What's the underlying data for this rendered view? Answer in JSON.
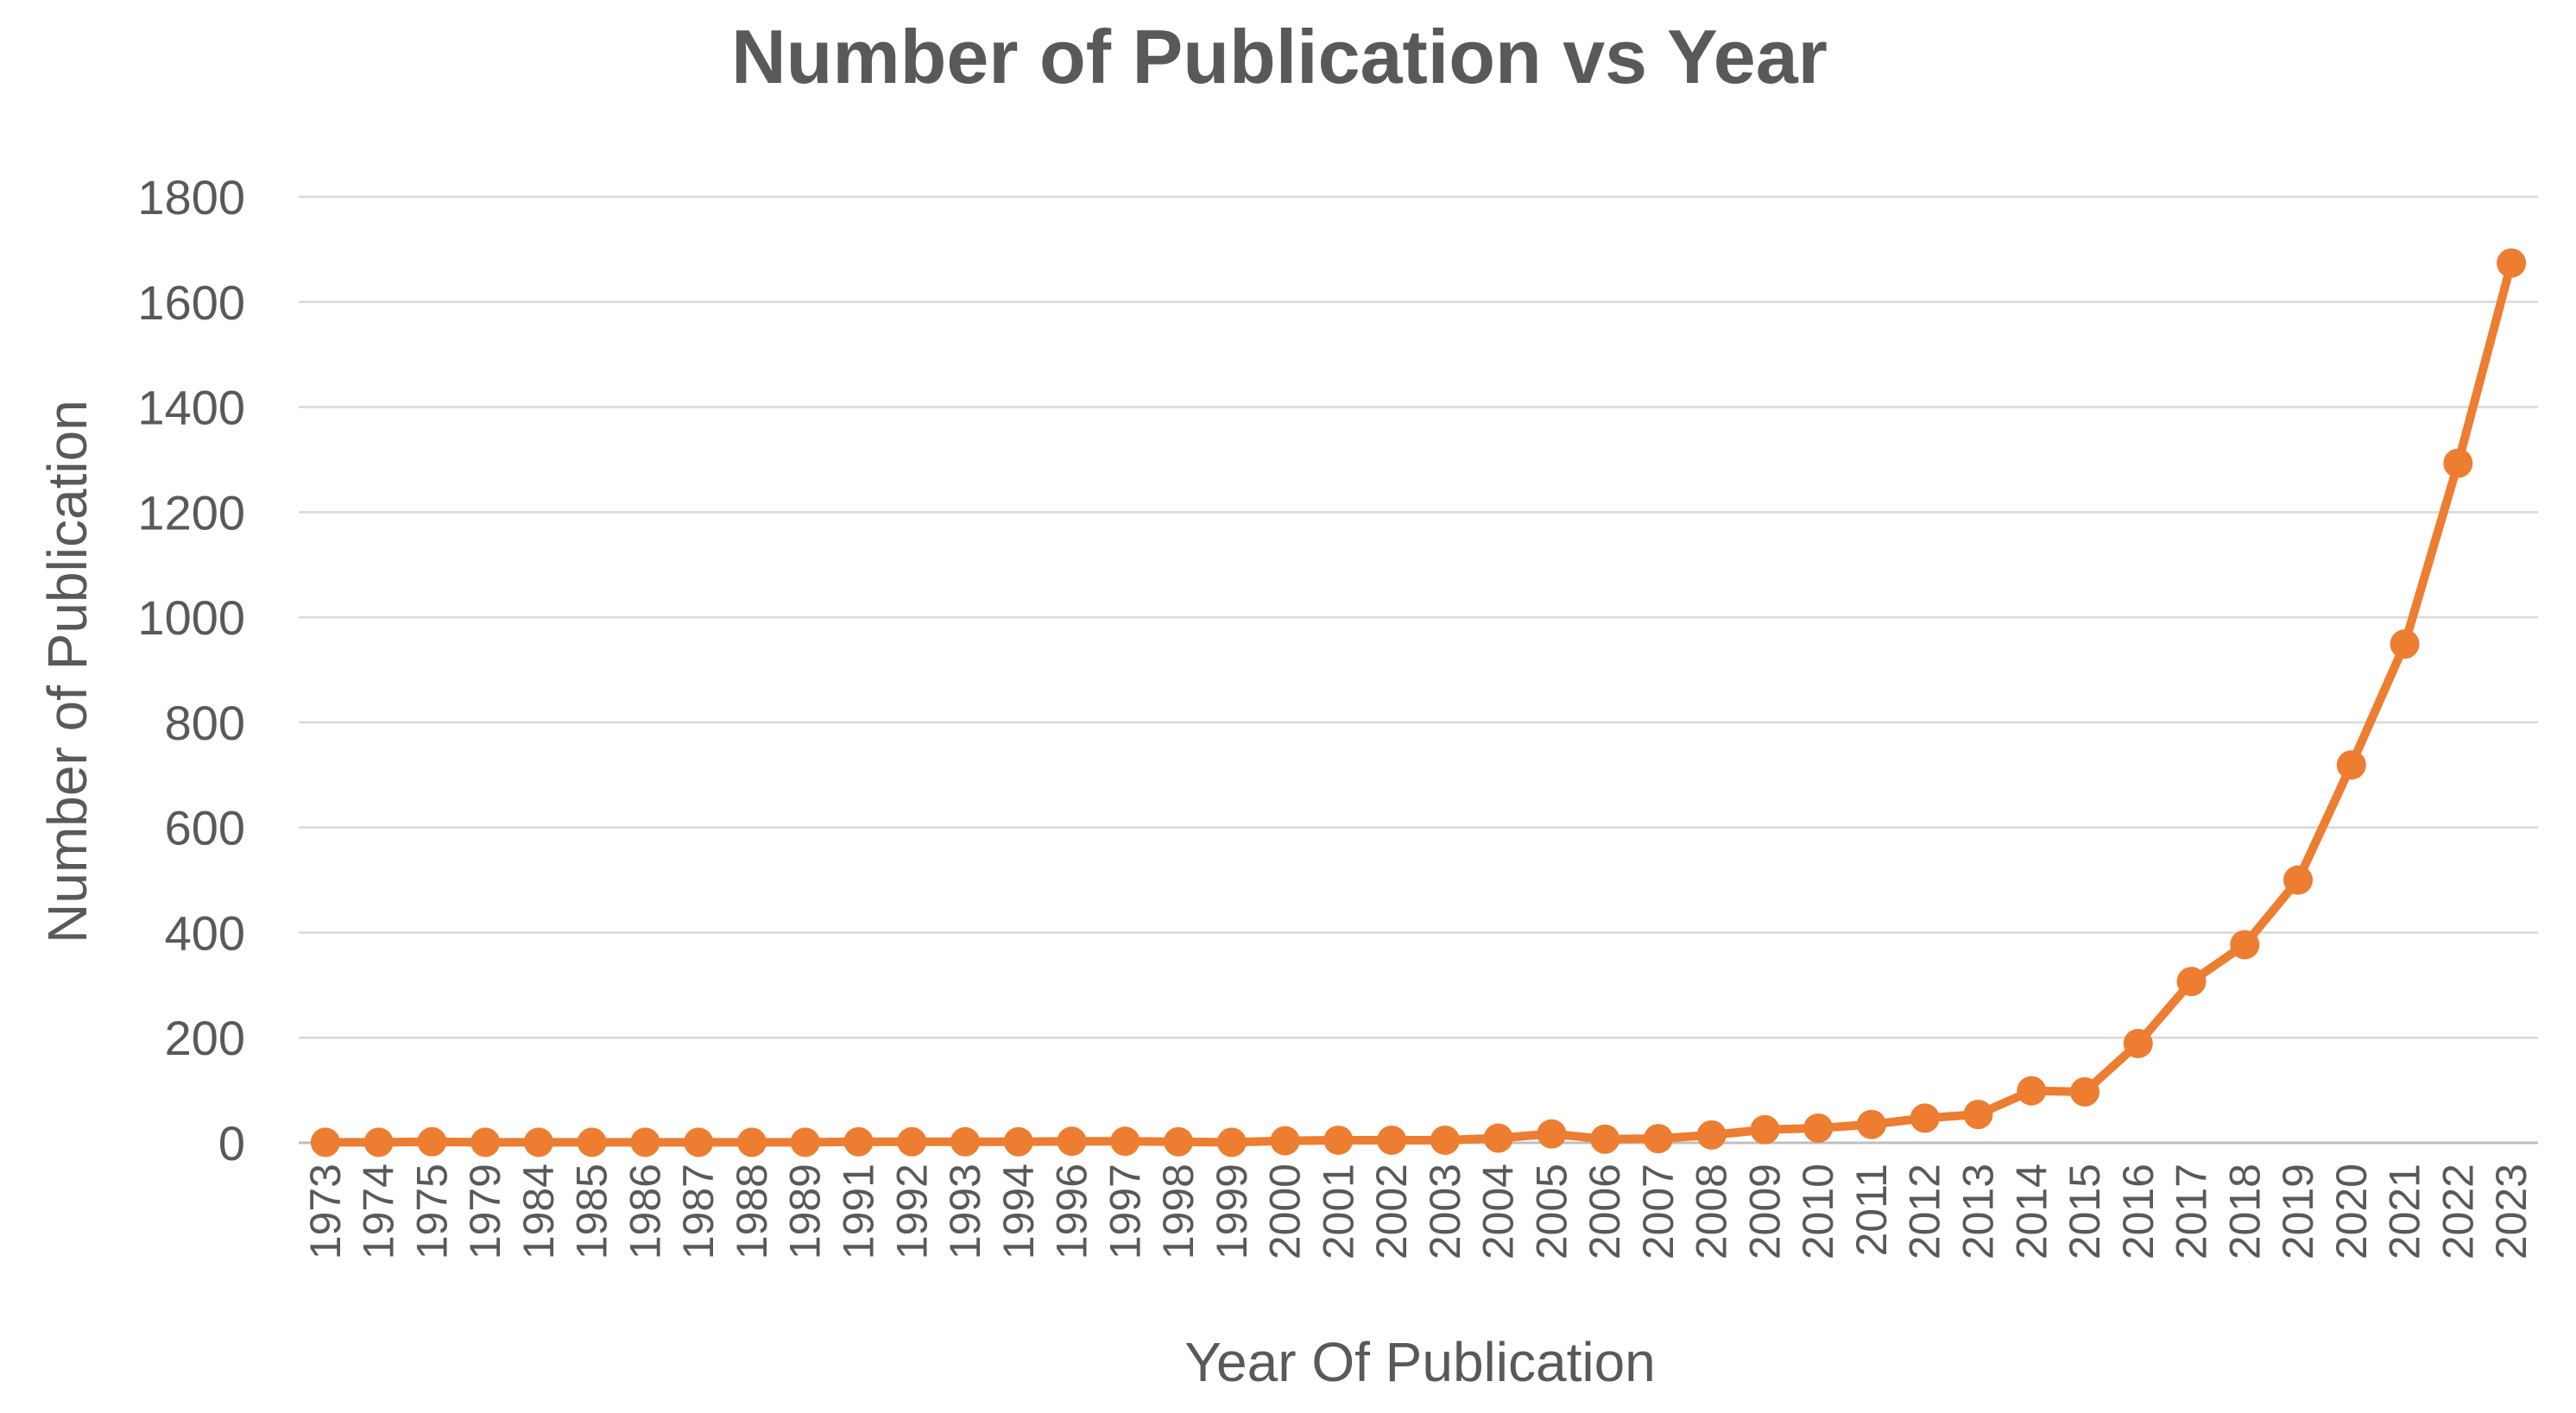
{
  "colors": {
    "series": "#ED7D31",
    "grid": "#D9D9D9",
    "axis": "#BFBFBF",
    "text": "#595959"
  },
  "chart_data": {
    "type": "line",
    "title": "Number of Publication vs Year",
    "xlabel": "Year Of Publication",
    "ylabel": "Number of Publication",
    "ylim": [
      0,
      1800
    ],
    "yticks": [
      0,
      200,
      400,
      600,
      800,
      1000,
      1200,
      1400,
      1600,
      1800
    ],
    "grid": true,
    "legend": "none",
    "categories": [
      "1973",
      "1974",
      "1975",
      "1979",
      "1984",
      "1985",
      "1986",
      "1987",
      "1988",
      "1989",
      "1991",
      "1992",
      "1993",
      "1994",
      "1996",
      "1997",
      "1998",
      "1999",
      "2000",
      "2001",
      "2002",
      "2003",
      "2004",
      "2005",
      "2006",
      "2007",
      "2008",
      "2009",
      "2010",
      "2011",
      "2012",
      "2013",
      "2014",
      "2015",
      "2016",
      "2017",
      "2018",
      "2019",
      "2020",
      "2021",
      "2022",
      "2023"
    ],
    "series": [
      {
        "values": [
          1,
          1,
          2,
          1,
          1,
          1,
          1,
          1,
          1,
          1,
          2,
          2,
          2,
          2,
          3,
          3,
          2,
          1,
          4,
          5,
          5,
          5,
          9,
          17,
          7,
          8,
          15,
          25,
          28,
          35,
          47,
          54,
          99,
          97,
          189,
          307,
          377,
          500,
          719,
          949,
          1293,
          1674
        ],
        "marker": "circle"
      }
    ]
  }
}
